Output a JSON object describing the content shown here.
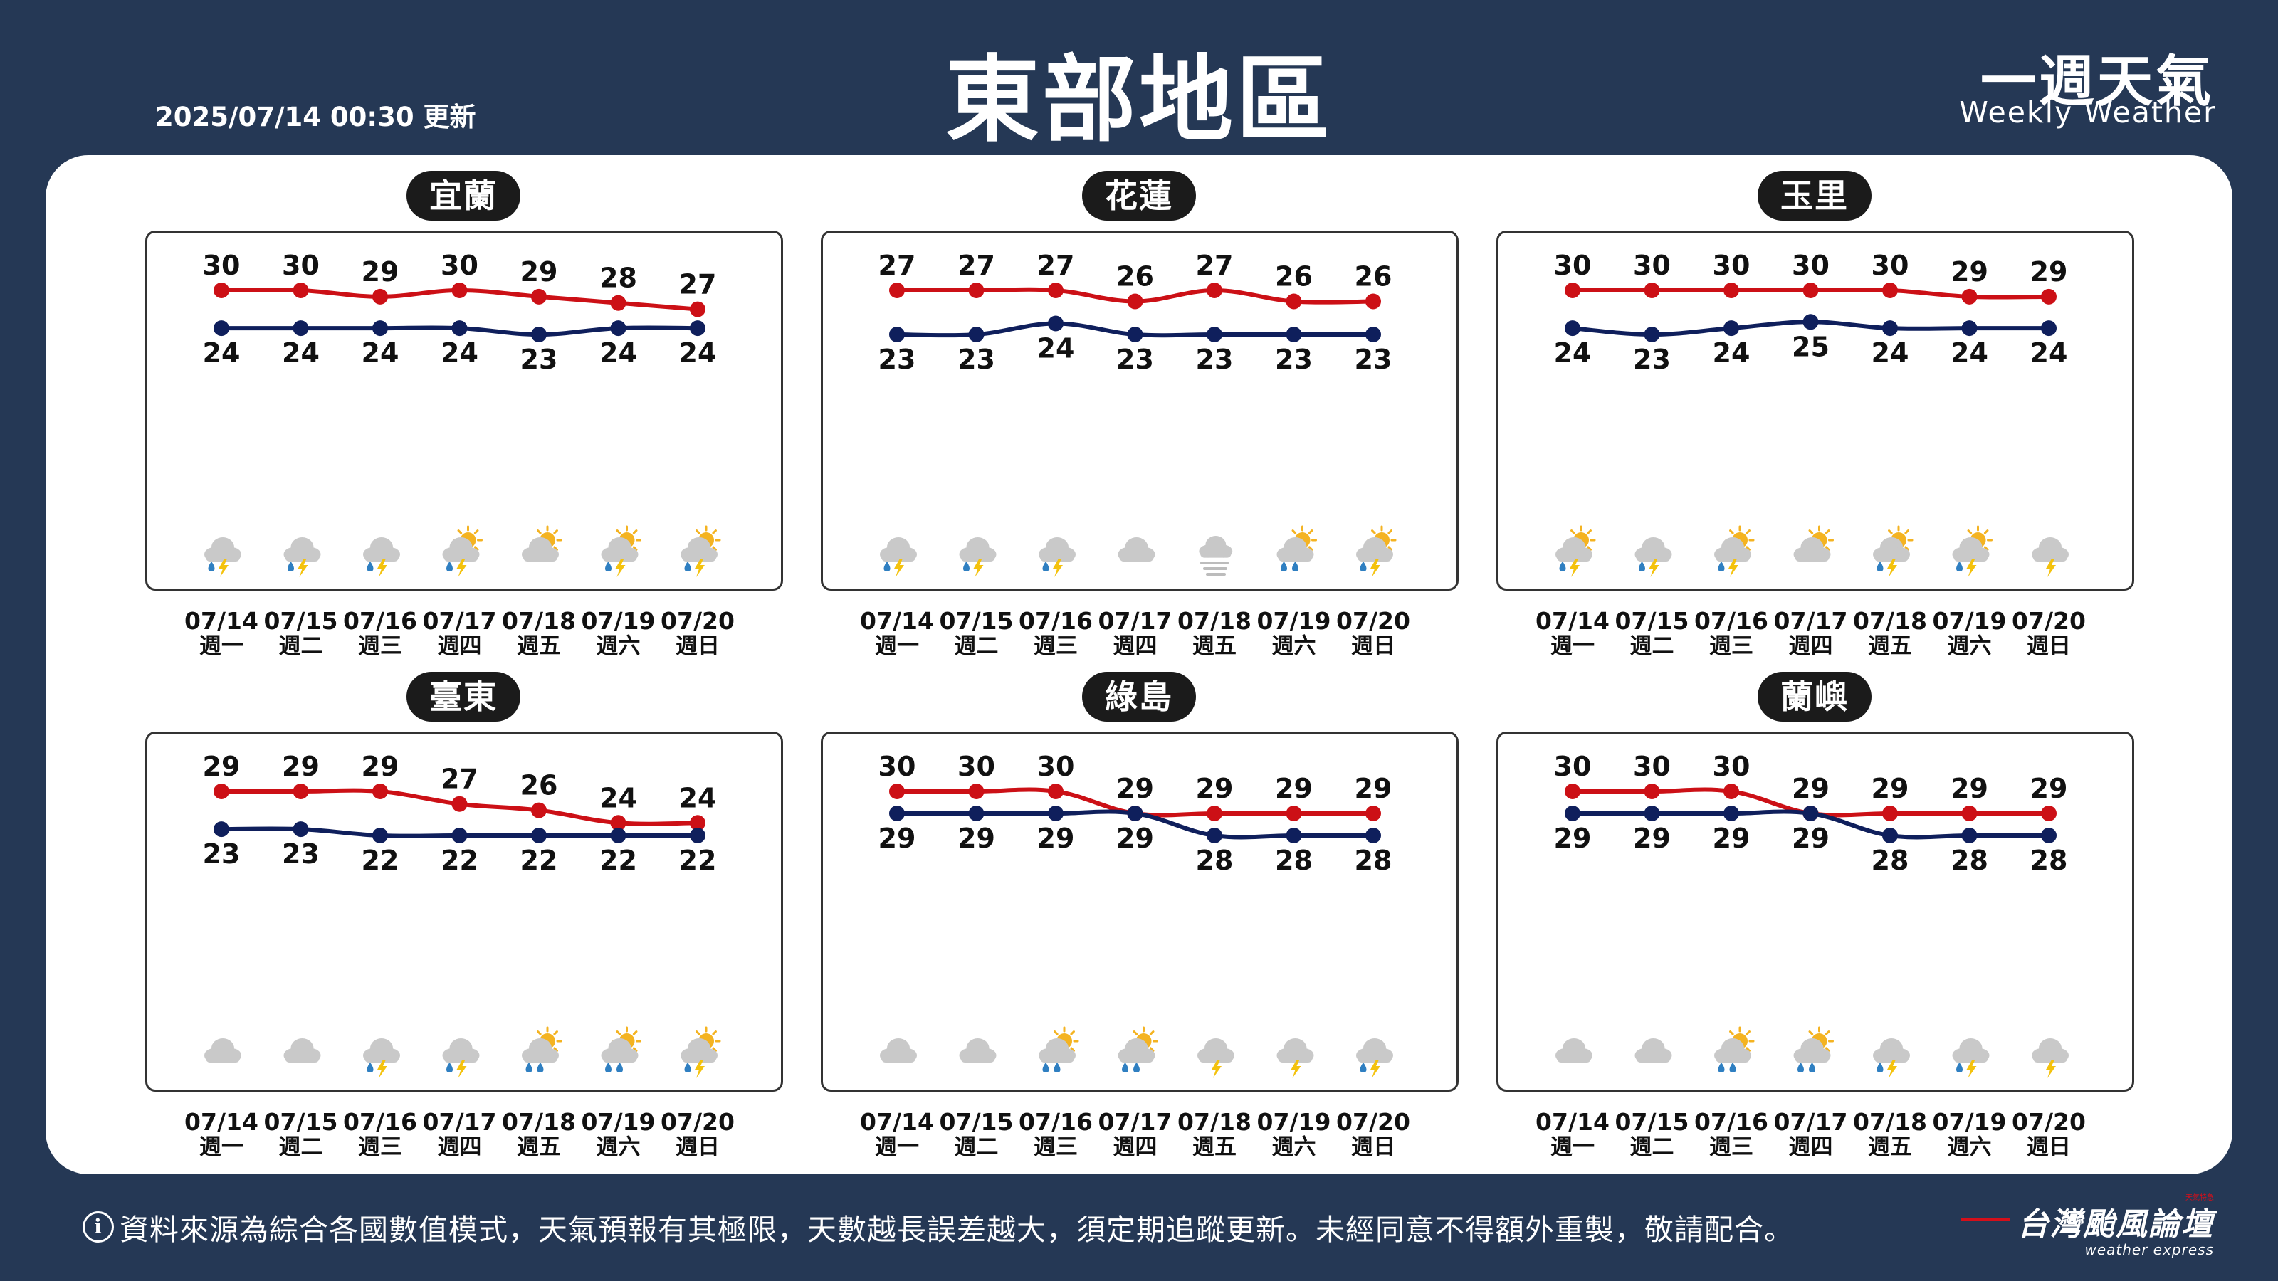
{
  "header": {
    "updated": "2025/07/14 00:30 更新",
    "title": "東部地區",
    "brand_cn": "一週天氣",
    "brand_en": "Weekly Weather"
  },
  "footer": {
    "info_icon": "info-circle-icon",
    "note": "資料來源為綜合各國數值模式，天氣預報有其極限，天數越長誤差越大，須定期追蹤更新。未經同意不得額外重製，敬請配合。",
    "logo_cn": "台灣颱風論壇",
    "logo_en": "weather express",
    "logo_small": "天氣特急"
  },
  "colors": {
    "high": "#cc1016",
    "low": "#0f1f5c",
    "background": "#253855"
  },
  "chart_data": [
    {
      "type": "line",
      "title": "宜蘭",
      "x": [
        "07/14",
        "07/15",
        "07/16",
        "07/17",
        "07/18",
        "07/19",
        "07/20"
      ],
      "weekdays": [
        "週一",
        "週二",
        "週三",
        "週四",
        "週五",
        "週六",
        "週日"
      ],
      "series": [
        {
          "values": [
            30,
            30,
            29,
            30,
            29,
            28,
            27
          ]
        },
        {
          "values": [
            24,
            24,
            24,
            24,
            23,
            24,
            24
          ]
        }
      ],
      "icons": [
        "cloud-rain-thunder-icon",
        "cloud-rain-thunder-icon",
        "cloud-rain-thunder-icon",
        "sun-cloud-rain-thunder-icon",
        "sun-cloud-icon",
        "sun-cloud-rain-thunder-icon",
        "sun-cloud-rain-thunder-icon"
      ]
    },
    {
      "type": "line",
      "title": "花蓮",
      "x": [
        "07/14",
        "07/15",
        "07/16",
        "07/17",
        "07/18",
        "07/19",
        "07/20"
      ],
      "weekdays": [
        "週一",
        "週二",
        "週三",
        "週四",
        "週五",
        "週六",
        "週日"
      ],
      "series": [
        {
          "values": [
            27,
            27,
            27,
            26,
            27,
            26,
            26
          ]
        },
        {
          "values": [
            23,
            23,
            24,
            23,
            23,
            23,
            23
          ]
        }
      ],
      "icons": [
        "cloud-rain-thunder-icon",
        "cloud-rain-thunder-icon",
        "cloud-rain-thunder-icon",
        "cloudy-icon",
        "fog-icon",
        "sun-cloud-rain-icon",
        "sun-cloud-rain-thunder-icon"
      ]
    },
    {
      "type": "line",
      "title": "玉里",
      "x": [
        "07/14",
        "07/15",
        "07/16",
        "07/17",
        "07/18",
        "07/19",
        "07/20"
      ],
      "weekdays": [
        "週一",
        "週二",
        "週三",
        "週四",
        "週五",
        "週六",
        "週日"
      ],
      "series": [
        {
          "values": [
            30,
            30,
            30,
            30,
            30,
            29,
            29
          ]
        },
        {
          "values": [
            24,
            23,
            24,
            25,
            24,
            24,
            24
          ]
        }
      ],
      "icons": [
        "sun-cloud-rain-thunder-icon",
        "cloud-rain-thunder-icon",
        "sun-cloud-rain-thunder-icon",
        "sun-cloud-icon",
        "sun-cloud-rain-thunder-icon",
        "sun-cloud-rain-thunder-icon",
        "cloud-thunder-icon"
      ]
    },
    {
      "type": "line",
      "title": "臺東",
      "x": [
        "07/14",
        "07/15",
        "07/16",
        "07/17",
        "07/18",
        "07/19",
        "07/20"
      ],
      "weekdays": [
        "週一",
        "週二",
        "週三",
        "週四",
        "週五",
        "週六",
        "週日"
      ],
      "series": [
        {
          "values": [
            29,
            29,
            29,
            27,
            26,
            24,
            24
          ]
        },
        {
          "values": [
            23,
            23,
            22,
            22,
            22,
            22,
            22
          ]
        }
      ],
      "icons": [
        "cloudy-icon",
        "cloudy-icon",
        "cloud-rain-thunder-icon",
        "cloud-rain-thunder-icon",
        "sun-cloud-rain-icon",
        "sun-cloud-rain-icon",
        "sun-cloud-rain-thunder-icon"
      ]
    },
    {
      "type": "line",
      "title": "綠島",
      "x": [
        "07/14",
        "07/15",
        "07/16",
        "07/17",
        "07/18",
        "07/19",
        "07/20"
      ],
      "weekdays": [
        "週一",
        "週二",
        "週三",
        "週四",
        "週五",
        "週六",
        "週日"
      ],
      "series": [
        {
          "values": [
            30,
            30,
            30,
            29,
            29,
            29,
            29
          ]
        },
        {
          "values": [
            29,
            29,
            29,
            29,
            28,
            28,
            28
          ]
        }
      ],
      "icons": [
        "cloudy-icon",
        "cloudy-icon",
        "sun-cloud-rain-icon",
        "sun-cloud-rain-icon",
        "cloud-thunder-icon",
        "cloud-thunder-icon",
        "cloud-rain-thunder-icon"
      ]
    },
    {
      "type": "line",
      "title": "蘭嶼",
      "x": [
        "07/14",
        "07/15",
        "07/16",
        "07/17",
        "07/18",
        "07/19",
        "07/20"
      ],
      "weekdays": [
        "週一",
        "週二",
        "週三",
        "週四",
        "週五",
        "週六",
        "週日"
      ],
      "series": [
        {
          "values": [
            30,
            30,
            30,
            29,
            29,
            29,
            29
          ]
        },
        {
          "values": [
            29,
            29,
            29,
            29,
            28,
            28,
            28
          ]
        }
      ],
      "icons": [
        "cloudy-icon",
        "cloudy-icon",
        "sun-cloud-rain-icon",
        "sun-cloud-rain-icon",
        "cloud-rain-thunder-icon",
        "cloud-rain-thunder-icon",
        "cloud-thunder-icon"
      ]
    }
  ]
}
